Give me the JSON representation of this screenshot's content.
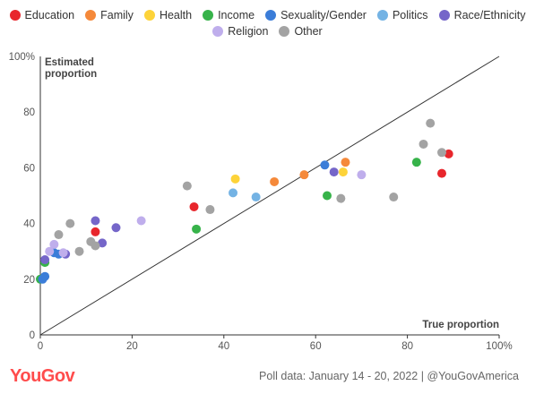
{
  "legend": [
    {
      "name": "Education",
      "color": "#e8262c"
    },
    {
      "name": "Family",
      "color": "#f5893a"
    },
    {
      "name": "Health",
      "color": "#fdd339"
    },
    {
      "name": "Income",
      "color": "#37b34a"
    },
    {
      "name": "Sexuality/Gender",
      "color": "#3b7dd8"
    },
    {
      "name": "Politics",
      "color": "#74b3e4"
    },
    {
      "name": "Race/Ethnicity",
      "color": "#7566c9"
    },
    {
      "name": "Religion",
      "color": "#bfaeec"
    },
    {
      "name": "Other",
      "color": "#a3a3a3"
    }
  ],
  "footer": {
    "brand": "YouGov",
    "source": "Poll data: January 14 - 20, 2022 | @YouGovAmerica"
  },
  "chart_data": {
    "type": "scatter",
    "title": "",
    "xlabel": "True proportion",
    "ylabel": "Estimated proportion",
    "xlim": [
      0,
      100
    ],
    "ylim": [
      0,
      100
    ],
    "x_ticks": [
      "0",
      "20",
      "40",
      "60",
      "80",
      "100%"
    ],
    "y_ticks": [
      "0",
      "20",
      "40",
      "60",
      "80",
      "100%"
    ],
    "reference_line": "y = x",
    "grid": false,
    "series": [
      {
        "name": "Education",
        "color": "#e8262c",
        "points": [
          [
            12,
            37
          ],
          [
            33.5,
            46
          ],
          [
            87.5,
            58
          ],
          [
            89,
            65
          ]
        ]
      },
      {
        "name": "Family",
        "color": "#f5893a",
        "points": [
          [
            51,
            55
          ],
          [
            57.5,
            57.5
          ],
          [
            66.5,
            62
          ]
        ]
      },
      {
        "name": "Health",
        "color": "#fdd339",
        "points": [
          [
            42.5,
            56
          ],
          [
            66,
            58.5
          ]
        ]
      },
      {
        "name": "Income",
        "color": "#37b34a",
        "points": [
          [
            0,
            20
          ],
          [
            1,
            26
          ],
          [
            34,
            38
          ],
          [
            62.5,
            50
          ],
          [
            82,
            62
          ]
        ]
      },
      {
        "name": "Sexuality/Gender",
        "color": "#3b7dd8",
        "points": [
          [
            0.5,
            20
          ],
          [
            1,
            21
          ],
          [
            3,
            29.5
          ],
          [
            4,
            29
          ],
          [
            62,
            61
          ]
        ]
      },
      {
        "name": "Politics",
        "color": "#74b3e4",
        "points": [
          [
            42,
            51
          ],
          [
            47,
            49.5
          ]
        ]
      },
      {
        "name": "Race/Ethnicity",
        "color": "#7566c9",
        "points": [
          [
            1,
            27
          ],
          [
            5.5,
            29
          ],
          [
            12,
            41
          ],
          [
            13.5,
            33
          ],
          [
            16.5,
            38.5
          ],
          [
            64,
            58.5
          ]
        ]
      },
      {
        "name": "Religion",
        "color": "#bfaeec",
        "points": [
          [
            2,
            30
          ],
          [
            3,
            32.5
          ],
          [
            5,
            29.5
          ],
          [
            22,
            41
          ],
          [
            70,
            57.5
          ]
        ]
      },
      {
        "name": "Other",
        "color": "#a3a3a3",
        "points": [
          [
            4,
            36
          ],
          [
            6.5,
            40
          ],
          [
            8.5,
            30
          ],
          [
            11,
            33.5
          ],
          [
            12,
            32
          ],
          [
            32,
            53.5
          ],
          [
            37,
            45
          ],
          [
            65.5,
            49
          ],
          [
            77,
            49.5
          ],
          [
            83.5,
            68.5
          ],
          [
            85,
            76
          ],
          [
            87.5,
            65.5
          ]
        ]
      }
    ]
  }
}
